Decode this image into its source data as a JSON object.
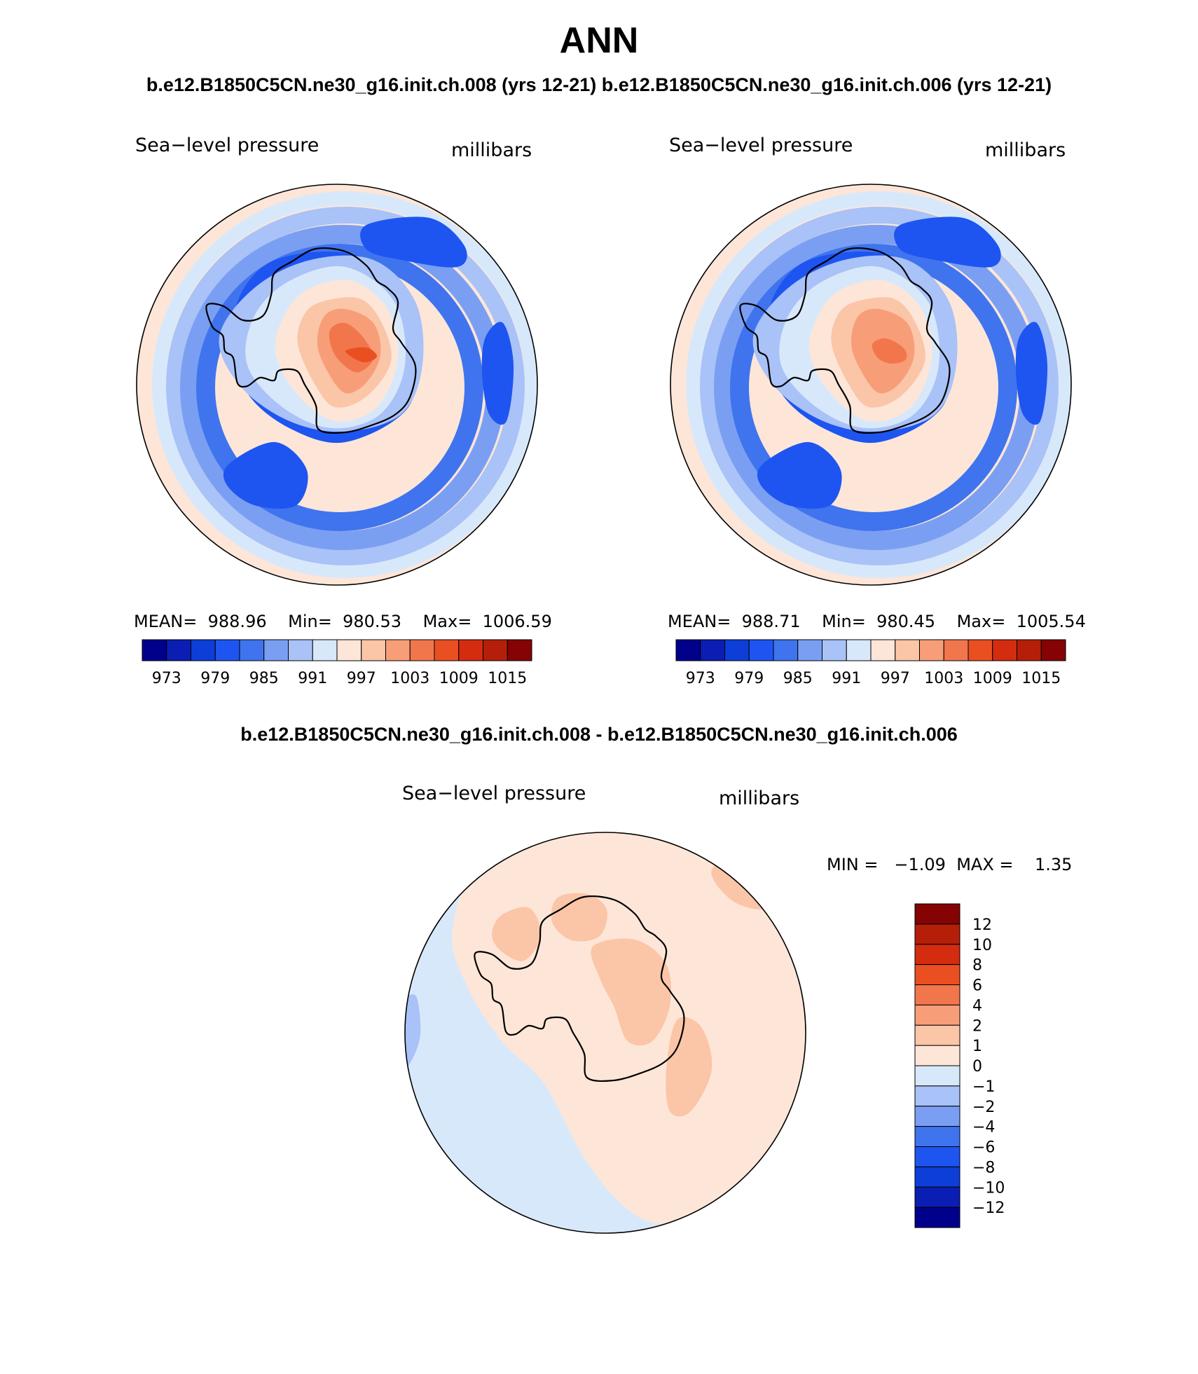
{
  "page_title": "ANN",
  "case_a": "b.e12.B1850C5CN.ne30_g16.init.ch.008 (yrs 12-21)",
  "case_b": "b.e12.B1850C5CN.ne30_g16.init.ch.006 (yrs 12-21)",
  "diff_title": "b.e12.B1850C5CN.ne30_g16.init.ch.008 - b.e12.B1850C5CN.ne30_g16.init.ch.006",
  "palette_abs": [
    "#00008b",
    "#0a1eb3",
    "#0d3ed8",
    "#1e55f0",
    "#3f74ee",
    "#7a9ff2",
    "#a9c2f7",
    "#d8e8fb",
    "#fde6d8",
    "#fbc5a8",
    "#f79e78",
    "#f2764c",
    "#ea4f22",
    "#d42c0f",
    "#b51f0a",
    "#850303"
  ],
  "palette_diff": [
    "#00008b",
    "#0a1eb3",
    "#0d3ed8",
    "#1e55f0",
    "#3f74ee",
    "#7a9ff2",
    "#a9c2f7",
    "#d8e8fb",
    "#fde6d8",
    "#fbc5a8",
    "#f79e78",
    "#f2764c",
    "#ea4f22",
    "#d42c0f",
    "#b51f0a",
    "#850303"
  ],
  "chart_data": [
    {
      "type": "heatmap",
      "projection": "south-polar-stereographic",
      "title": "b.e12.B1850C5CN.ne30_g16.init.ch.008 (yrs 12-21)",
      "variable": "Sea−level pressure",
      "units": "millibars",
      "stats": {
        "mean_label": "MEAN=",
        "mean": "988.96",
        "min_label": "Min=",
        "min": "980.53",
        "max_label": "Max=",
        "max": "1006.59"
      },
      "contour_levels": [
        973,
        976,
        979,
        982,
        985,
        988,
        991,
        994,
        997,
        1000,
        1003,
        1006,
        1009,
        1012,
        1015
      ],
      "colorbar_labels": [
        "973",
        "979",
        "985",
        "991",
        "997",
        "1003",
        "1009",
        "1015"
      ]
    },
    {
      "type": "heatmap",
      "projection": "south-polar-stereographic",
      "title": "b.e12.B1850C5CN.ne30_g16.init.ch.006 (yrs 12-21)",
      "variable": "Sea−level pressure",
      "units": "millibars",
      "stats": {
        "mean_label": "MEAN=",
        "mean": "988.71",
        "min_label": "Min=",
        "min": "980.45",
        "max_label": "Max=",
        "max": "1005.54"
      },
      "contour_levels": [
        973,
        976,
        979,
        982,
        985,
        988,
        991,
        994,
        997,
        1000,
        1003,
        1006,
        1009,
        1012,
        1015
      ],
      "colorbar_labels": [
        "973",
        "979",
        "985",
        "991",
        "997",
        "1003",
        "1009",
        "1015"
      ]
    },
    {
      "type": "heatmap",
      "projection": "south-polar-stereographic",
      "title": "b.e12.B1850C5CN.ne30_g16.init.ch.008 - b.e12.B1850C5CN.ne30_g16.init.ch.006",
      "variable": "Sea−level pressure",
      "units": "millibars",
      "stats": {
        "min_label": "MIN =",
        "min": "−1.09",
        "max_label": "MAX =",
        "max": "1.35"
      },
      "contour_levels": [
        -12,
        -10,
        -8,
        -6,
        -4,
        -2,
        -1,
        0,
        1,
        2,
        4,
        6,
        8,
        10,
        12
      ],
      "colorbar_labels": [
        "12",
        "10",
        "8",
        "6",
        "4",
        "2",
        "1",
        "0",
        "−1",
        "−2",
        "−4",
        "−6",
        "−8",
        "−10",
        "−12"
      ]
    }
  ]
}
